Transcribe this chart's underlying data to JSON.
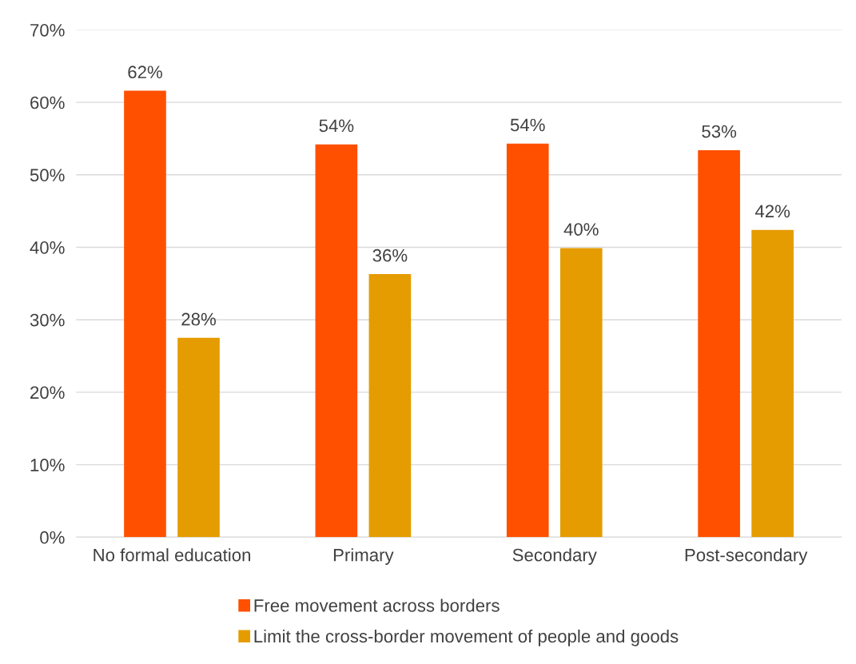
{
  "chart_data": {
    "type": "bar",
    "categories": [
      "No formal education",
      "Primary",
      "Secondary",
      "Post-secondary"
    ],
    "series": [
      {
        "name": "Free movement across borders",
        "color": "#ff5000",
        "values": [
          61.6,
          54.2,
          54.3,
          53.4
        ],
        "value_labels": [
          "62%",
          "54%",
          "54%",
          "53%"
        ]
      },
      {
        "name": "Limit the cross-border movement of people and goods",
        "color": "#e59c00",
        "values": [
          27.5,
          36.3,
          39.9,
          42.4
        ],
        "value_labels": [
          "28%",
          "36%",
          "40%",
          "42%"
        ]
      }
    ],
    "ylim": [
      0,
      70
    ],
    "yticks": [
      {
        "value": 0,
        "label": "0%"
      },
      {
        "value": 10,
        "label": "10%"
      },
      {
        "value": 20,
        "label": "20%"
      },
      {
        "value": 30,
        "label": "30%"
      },
      {
        "value": 40,
        "label": "40%"
      },
      {
        "value": 50,
        "label": "50%"
      },
      {
        "value": 60,
        "label": "60%"
      },
      {
        "value": 70,
        "label": "70%"
      }
    ],
    "grid": "y",
    "legend": "bottom"
  }
}
